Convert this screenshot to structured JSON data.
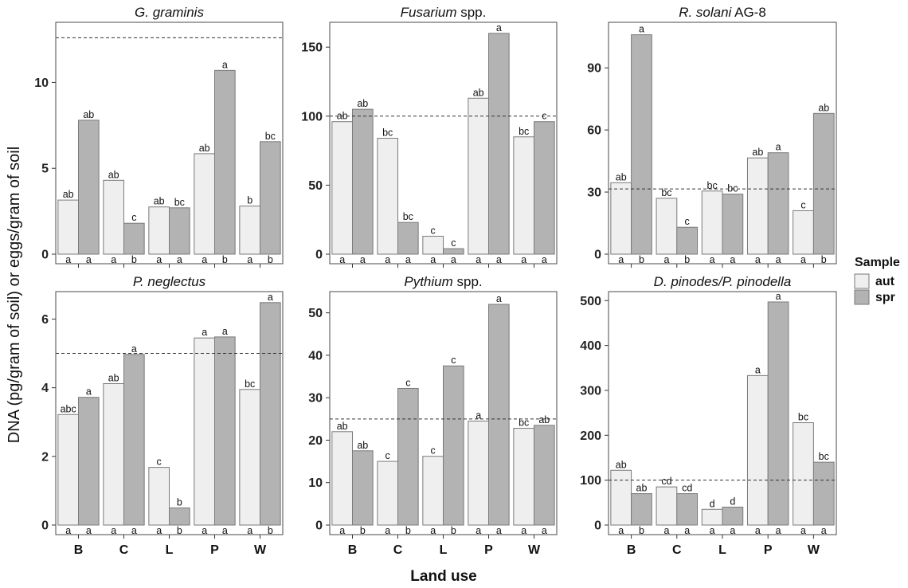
{
  "figure": {
    "ylabel": "DNA (pg/gram of soil) or eggs/gram of soil",
    "xlabel": "Land use"
  },
  "legend": {
    "title": "Sample",
    "items": [
      {
        "name": "aut",
        "color": "#efefef"
      },
      {
        "name": "spr",
        "color": "#b3b3b3"
      }
    ]
  },
  "chart_data": [
    {
      "type": "bar",
      "title_italic": "G. graminis",
      "title_rest": "",
      "categories": [
        "B",
        "C",
        "L",
        "P",
        "W"
      ],
      "ylim": [
        0,
        13.5
      ],
      "yticks": [
        0,
        5,
        10
      ],
      "threshold": 12.6,
      "series": [
        {
          "name": "aut",
          "values": [
            3.15,
            4.3,
            2.75,
            5.85,
            2.8
          ],
          "top_labels": [
            "ab",
            "ab",
            "ab",
            "ab",
            "b"
          ],
          "bottom_labels": [
            "a",
            "a",
            "a",
            "a",
            "a"
          ]
        },
        {
          "name": "spr",
          "values": [
            7.8,
            1.8,
            2.7,
            10.7,
            6.55
          ],
          "top_labels": [
            "ab",
            "c",
            "bc",
            "a",
            "bc"
          ],
          "bottom_labels": [
            "a",
            "b",
            "a",
            "b",
            "b"
          ]
        }
      ]
    },
    {
      "type": "bar",
      "title_italic": "Fusarium",
      "title_rest": " spp.",
      "categories": [
        "B",
        "C",
        "L",
        "P",
        "W"
      ],
      "ylim": [
        0,
        168
      ],
      "yticks": [
        0,
        50,
        100,
        150
      ],
      "threshold": 100,
      "series": [
        {
          "name": "aut",
          "values": [
            96,
            84,
            13,
            113,
            85
          ],
          "top_labels": [
            "ab",
            "bc",
            "c",
            "ab",
            "bc"
          ],
          "bottom_labels": [
            "a",
            "a",
            "a",
            "a",
            "a"
          ]
        },
        {
          "name": "spr",
          "values": [
            105,
            23,
            4,
            160,
            96
          ],
          "top_labels": [
            "ab",
            "bc",
            "c",
            "a",
            "c"
          ],
          "bottom_labels": [
            "a",
            "a",
            "a",
            "a",
            "a"
          ]
        }
      ]
    },
    {
      "type": "bar",
      "title_italic": "R. solani",
      "title_rest": " AG-8",
      "categories": [
        "B",
        "C",
        "L",
        "P",
        "W"
      ],
      "ylim": [
        0,
        112
      ],
      "yticks": [
        0,
        30,
        60,
        90
      ],
      "threshold": 31.5,
      "series": [
        {
          "name": "aut",
          "values": [
            34.5,
            27,
            30.5,
            46.5,
            21
          ],
          "top_labels": [
            "ab",
            "bc",
            "bc",
            "ab",
            "c"
          ],
          "bottom_labels": [
            "a",
            "a",
            "a",
            "a",
            "a"
          ]
        },
        {
          "name": "spr",
          "values": [
            106,
            13,
            29,
            49,
            68
          ],
          "top_labels": [
            "a",
            "c",
            "bc",
            "a",
            "ab"
          ],
          "bottom_labels": [
            "b",
            "b",
            "a",
            "a",
            "b"
          ]
        }
      ]
    },
    {
      "type": "bar",
      "title_italic": "P. neglectus",
      "title_rest": "",
      "categories": [
        "B",
        "C",
        "L",
        "P",
        "W"
      ],
      "ylim": [
        0,
        6.8
      ],
      "yticks": [
        0,
        2,
        4,
        6
      ],
      "threshold": 5,
      "series": [
        {
          "name": "aut",
          "values": [
            3.22,
            4.12,
            1.68,
            5.45,
            3.95
          ],
          "top_labels": [
            "abc",
            "ab",
            "c",
            "a",
            "bc"
          ],
          "bottom_labels": [
            "a",
            "a",
            "a",
            "a",
            "a"
          ]
        },
        {
          "name": "spr",
          "values": [
            3.72,
            4.97,
            0.5,
            5.48,
            6.48
          ],
          "top_labels": [
            "a",
            "a",
            "b",
            "a",
            "a"
          ],
          "bottom_labels": [
            "a",
            "a",
            "b",
            "a",
            "b"
          ]
        }
      ]
    },
    {
      "type": "bar",
      "title_italic": "Pythium",
      "title_rest": " spp.",
      "categories": [
        "B",
        "C",
        "L",
        "P",
        "W"
      ],
      "ylim": [
        0,
        55
      ],
      "yticks": [
        0,
        10,
        20,
        30,
        40,
        50
      ],
      "threshold": 25,
      "series": [
        {
          "name": "aut",
          "values": [
            22,
            15,
            16.2,
            24.5,
            22.8
          ],
          "top_labels": [
            "ab",
            "c",
            "c",
            "a",
            "bc"
          ],
          "bottom_labels": [
            "a",
            "a",
            "a",
            "a",
            "a"
          ]
        },
        {
          "name": "spr",
          "values": [
            17.5,
            32.2,
            37.5,
            52,
            23.5
          ],
          "top_labels": [
            "ab",
            "c",
            "c",
            "a",
            "ab"
          ],
          "bottom_labels": [
            "b",
            "b",
            "b",
            "a",
            "a"
          ]
        }
      ]
    },
    {
      "type": "bar",
      "title_italic": "D. pinodes/P. pinodella",
      "title_rest": "",
      "categories": [
        "B",
        "C",
        "L",
        "P",
        "W"
      ],
      "ylim": [
        0,
        520
      ],
      "yticks": [
        0,
        100,
        200,
        300,
        400,
        500
      ],
      "threshold": 100,
      "series": [
        {
          "name": "aut",
          "values": [
            122,
            85,
            35,
            333,
            228
          ],
          "top_labels": [
            "ab",
            "cd",
            "d",
            "a",
            "bc"
          ],
          "bottom_labels": [
            "a",
            "a",
            "a",
            "a",
            "a"
          ]
        },
        {
          "name": "spr",
          "values": [
            70,
            70,
            40,
            497,
            140
          ],
          "top_labels": [
            "ab",
            "cd",
            "d",
            "a",
            "bc"
          ],
          "bottom_labels": [
            "b",
            "a",
            "a",
            "a",
            "a"
          ]
        }
      ]
    }
  ]
}
